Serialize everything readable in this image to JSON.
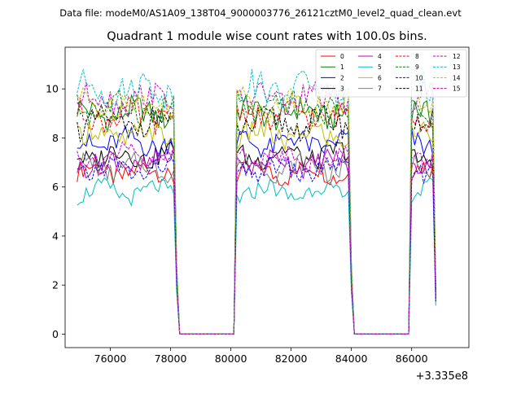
{
  "figure": {
    "suptitle": "Data file: modeM0/AS1A09_138T04_9000003776_26121cztM0_level2_quad_clean.evt"
  },
  "chart_data": {
    "type": "line",
    "title": "Quadrant 1 module wise count rates with 100.0s bins.",
    "xlabel": "",
    "ylabel": "",
    "offset_label": "+3.335e8",
    "xlim": [
      74500,
      87900
    ],
    "ylim": [
      -0.55,
      11.7
    ],
    "xticks": [
      76000,
      78000,
      80000,
      82000,
      84000,
      86000
    ],
    "xtick_labels": [
      "76000",
      "78000",
      "80000",
      "82000",
      "84000",
      "86000"
    ],
    "yticks": [
      0,
      2,
      4,
      6,
      8,
      10
    ],
    "ytick_labels": [
      "0",
      "2",
      "4",
      "6",
      "8",
      "10"
    ],
    "grid": false,
    "legend_position": "top-right",
    "legend_columns": 4,
    "bin_size": 100,
    "segments": [
      {
        "start": 74900,
        "end": 78200
      },
      {
        "start": 80200,
        "end": 84000
      },
      {
        "start": 86000,
        "end": 86800
      }
    ],
    "series": [
      {
        "name": "0",
        "color": "#ff0000",
        "dash": false,
        "level": 6.6
      },
      {
        "name": "1",
        "color": "#008000",
        "dash": false,
        "level": 9.0
      },
      {
        "name": "2",
        "color": "#0000ff",
        "dash": false,
        "level": 7.8
      },
      {
        "name": "3",
        "color": "#000000",
        "dash": false,
        "level": 7.3
      },
      {
        "name": "4",
        "color": "#bf00bf",
        "dash": false,
        "level": 7.0
      },
      {
        "name": "5",
        "color": "#00bfbf",
        "dash": false,
        "level": 5.8
      },
      {
        "name": "6",
        "color": "#bfbf00",
        "dash": false,
        "level": 8.1
      },
      {
        "name": "7",
        "color": "#808080",
        "dash": false,
        "level": 6.8
      },
      {
        "name": "8",
        "color": "#ff0000",
        "dash": true,
        "level": 8.9
      },
      {
        "name": "9",
        "color": "#008000",
        "dash": true,
        "level": 9.2
      },
      {
        "name": "10",
        "color": "#0000ff",
        "dash": true,
        "level": 6.7
      },
      {
        "name": "11",
        "color": "#000000",
        "dash": true,
        "level": 8.6
      },
      {
        "name": "12",
        "color": "#bf00bf",
        "dash": true,
        "level": 9.6
      },
      {
        "name": "13",
        "color": "#00bfbf",
        "dash": true,
        "level": 10.0
      },
      {
        "name": "14",
        "color": "#bfbf00",
        "dash": true,
        "level": 9.4
      },
      {
        "name": "15",
        "color": "#bf00bf",
        "dash": true,
        "level": 7.2
      }
    ]
  }
}
